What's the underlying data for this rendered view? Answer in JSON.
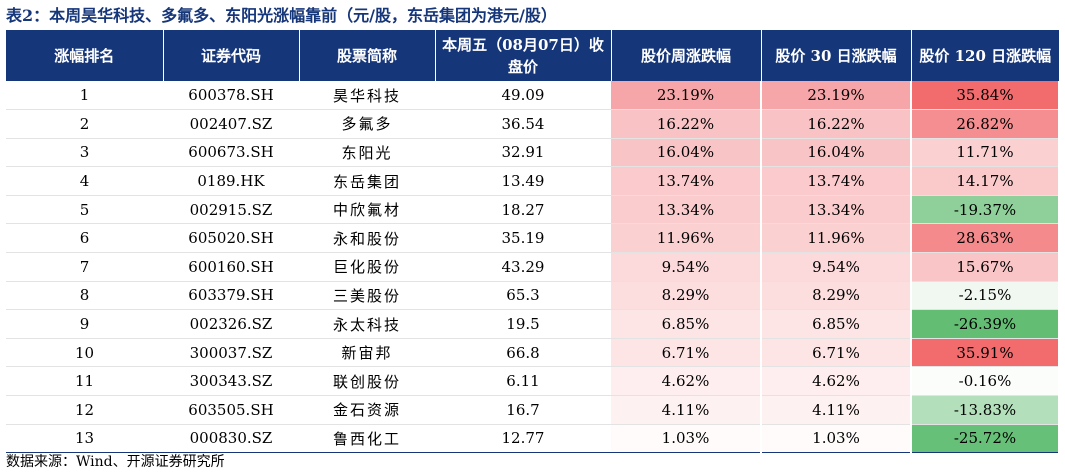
{
  "title": "表2：本周昊华科技、多氟多、东阳光涨幅靠前（元/股，东岳集团为港元/股）",
  "headers": [
    "涨幅排名",
    "证券代码",
    "股票简称",
    "本周五（08月07日）收盘价",
    "股价周涨跌幅",
    "股价 30 日涨跌幅",
    "股价 120 日涨跌幅"
  ],
  "rows": [
    {
      "rank": "1",
      "code": "600378.SH",
      "name": "昊华科技",
      "close": "49.09",
      "week": "23.19%",
      "d30": "23.19%",
      "d120": "35.84%",
      "c_week": "#f6a6a8",
      "c_d30": "#f6a6a8",
      "c_d120": "#f26c6e"
    },
    {
      "rank": "2",
      "code": "002407.SZ",
      "name": "多氟多",
      "close": "36.54",
      "week": "16.22%",
      "d30": "16.22%",
      "d120": "26.82%",
      "c_week": "#f9c3c5",
      "c_d30": "#f9c3c5",
      "c_d120": "#f58e90"
    },
    {
      "rank": "3",
      "code": "600673.SH",
      "name": "东阳光",
      "close": "32.91",
      "week": "16.04%",
      "d30": "16.04%",
      "d120": "11.71%",
      "c_week": "#f9c4c6",
      "c_d30": "#f9c4c6",
      "c_d120": "#fbd0d1"
    },
    {
      "rank": "4",
      "code": "0189.HK",
      "name": "东岳集团",
      "close": "13.49",
      "week": "13.74%",
      "d30": "13.74%",
      "d120": "14.17%",
      "c_week": "#facacc",
      "c_d30": "#facacc",
      "c_d120": "#facacb"
    },
    {
      "rank": "5",
      "code": "002915.SZ",
      "name": "中欣氟材",
      "close": "18.27",
      "week": "13.34%",
      "d30": "13.34%",
      "d120": "-19.37%",
      "c_week": "#facccd",
      "c_d30": "#facccd",
      "c_d120": "#8fd09a"
    },
    {
      "rank": "6",
      "code": "605020.SH",
      "name": "永和股份",
      "close": "35.19",
      "week": "11.96%",
      "d30": "11.96%",
      "d120": "28.63%",
      "c_week": "#fbd0d1",
      "c_d30": "#fbd0d1",
      "c_d120": "#f48a8c"
    },
    {
      "rank": "7",
      "code": "600160.SH",
      "name": "巨化股份",
      "close": "43.29",
      "week": "9.54%",
      "d30": "9.54%",
      "d120": "15.67%",
      "c_week": "#fcd9da",
      "c_d30": "#fcd9da",
      "c_d120": "#f9c5c7"
    },
    {
      "rank": "8",
      "code": "603379.SH",
      "name": "三美股份",
      "close": "65.3",
      "week": "8.29%",
      "d30": "8.29%",
      "d120": "-2.15%",
      "c_week": "#fcdedf",
      "c_d30": "#fcdedf",
      "c_d120": "#f0f8f1"
    },
    {
      "rank": "9",
      "code": "002326.SZ",
      "name": "永太科技",
      "close": "19.5",
      "week": "6.85%",
      "d30": "6.85%",
      "d120": "-26.39%",
      "c_week": "#fde4e5",
      "c_d30": "#fde4e5",
      "c_d120": "#63be74"
    },
    {
      "rank": "10",
      "code": "300037.SZ",
      "name": "新宙邦",
      "close": "66.8",
      "week": "6.71%",
      "d30": "6.71%",
      "d120": "35.91%",
      "c_week": "#fde5e6",
      "c_d30": "#fde5e6",
      "c_d120": "#f26b6d"
    },
    {
      "rank": "11",
      "code": "300343.SZ",
      "name": "联创股份",
      "close": "6.11",
      "week": "4.62%",
      "d30": "4.62%",
      "d120": "-0.16%",
      "c_week": "#feeeef",
      "c_d30": "#feeeef",
      "c_d120": "#fbfdfb"
    },
    {
      "rank": "12",
      "code": "603505.SH",
      "name": "金石资源",
      "close": "16.7",
      "week": "4.11%",
      "d30": "4.11%",
      "d120": "-13.83%",
      "c_week": "#fef1f1",
      "c_d30": "#fef1f1",
      "c_d120": "#b3e0ba"
    },
    {
      "rank": "13",
      "code": "000830.SZ",
      "name": "鲁西化工",
      "close": "12.77",
      "week": "1.03%",
      "d30": "1.03%",
      "d120": "-25.72%",
      "c_week": "#fffbfb",
      "c_d30": "#fffbfb",
      "c_d120": "#67c078"
    }
  ],
  "source": "数据来源：Wind、开源证券研究所"
}
